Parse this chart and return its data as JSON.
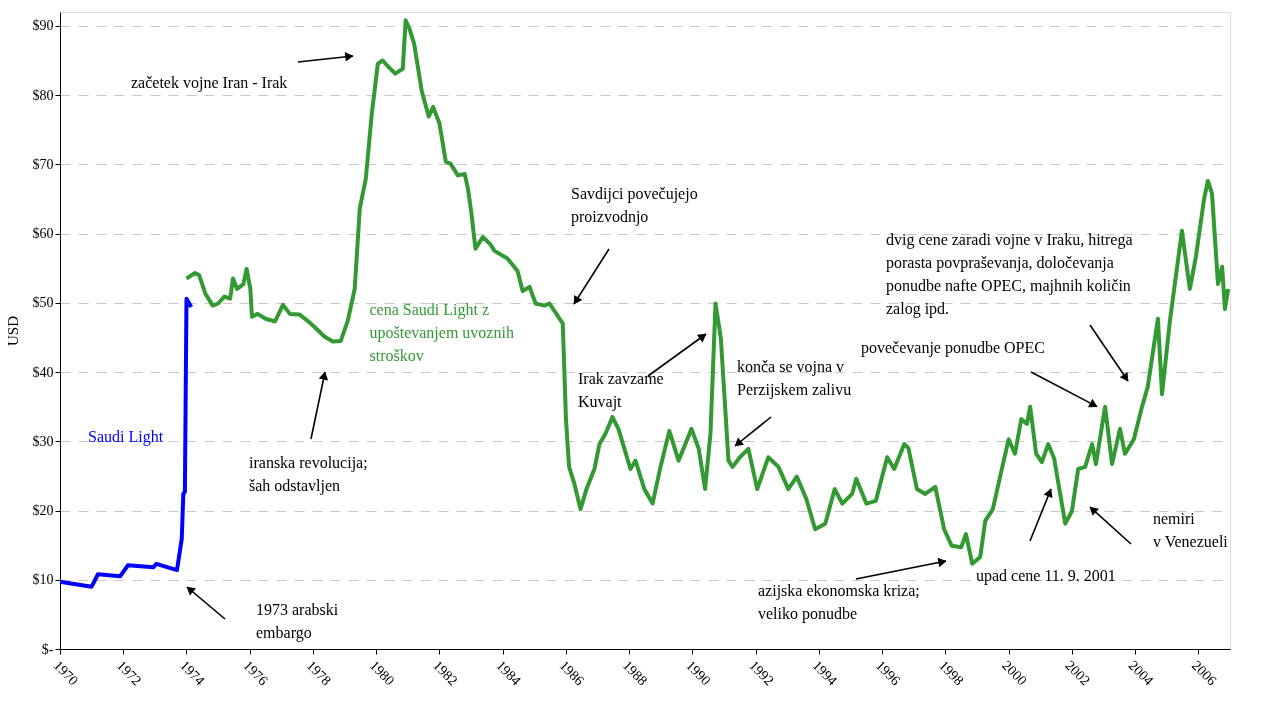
{
  "chart_data": {
    "type": "line",
    "ylabel": "USD",
    "xlim": [
      1970,
      2007
    ],
    "ylim": [
      0,
      92
    ],
    "xticks": [
      1970,
      1972,
      1974,
      1976,
      1978,
      1980,
      1982,
      1984,
      1986,
      1988,
      1990,
      1992,
      1994,
      1996,
      1998,
      2000,
      2002,
      2004,
      2006
    ],
    "yticks": [
      {
        "value": 0,
        "label": "$-"
      },
      {
        "value": 10,
        "label": "$10"
      },
      {
        "value": 20,
        "label": "$20"
      },
      {
        "value": 30,
        "label": "$30"
      },
      {
        "value": 40,
        "label": "$40"
      },
      {
        "value": 50,
        "label": "$50"
      },
      {
        "value": 60,
        "label": "$60"
      },
      {
        "value": 70,
        "label": "$70"
      },
      {
        "value": 80,
        "label": "$80"
      },
      {
        "value": 90,
        "label": "$90"
      }
    ],
    "grid": "y",
    "line_style": "solid",
    "marker": "none",
    "series": [
      {
        "name": "Saudi Light",
        "color": "#0000ff",
        "x": [
          1970.0,
          1971.0,
          1971.2,
          1971.9,
          1972.15,
          1972.95,
          1973.05,
          1973.7,
          1973.85,
          1973.9,
          1973.95,
          1974.0,
          1974.15
        ],
        "values": [
          9.7,
          9.0,
          10.8,
          10.5,
          12.1,
          11.8,
          12.3,
          11.4,
          15.9,
          22.4,
          22.7,
          50.6,
          49.4
        ]
      },
      {
        "name": "cena Saudi Light z upoštevanjem uvoznih stroškov",
        "color": "#339933",
        "x": [
          1974.0,
          1974.27,
          1974.4,
          1974.6,
          1974.83,
          1975.0,
          1975.2,
          1975.38,
          1975.47,
          1975.6,
          1975.8,
          1975.9,
          1976.02,
          1976.07,
          1976.25,
          1976.5,
          1976.8,
          1977.05,
          1977.27,
          1977.58,
          1977.83,
          1978.05,
          1978.37,
          1978.63,
          1978.88,
          1979.1,
          1979.32,
          1979.48,
          1979.67,
          1979.86,
          1980.05,
          1980.2,
          1980.36,
          1980.6,
          1980.84,
          1980.93,
          1981.05,
          1981.2,
          1981.44,
          1981.66,
          1981.8,
          1982.0,
          1982.2,
          1982.35,
          1982.58,
          1982.8,
          1982.9,
          1983.0,
          1983.14,
          1983.37,
          1983.6,
          1983.74,
          1984.15,
          1984.47,
          1984.63,
          1984.85,
          1985.04,
          1985.32,
          1985.48,
          1985.9,
          1986.0,
          1986.1,
          1986.27,
          1986.46,
          1986.65,
          1986.9,
          1987.06,
          1987.25,
          1987.47,
          1987.66,
          1987.85,
          1988.04,
          1988.2,
          1988.48,
          1988.74,
          1988.99,
          1989.27,
          1989.56,
          1989.75,
          1989.97,
          1990.2,
          1990.4,
          1990.57,
          1990.73,
          1990.9,
          1991.14,
          1991.27,
          1991.5,
          1991.77,
          1992.05,
          1992.4,
          1992.72,
          1993.03,
          1993.3,
          1993.6,
          1993.88,
          1994.2,
          1994.5,
          1994.74,
          1995.05,
          1995.18,
          1995.5,
          1995.8,
          1996.16,
          1996.38,
          1996.7,
          1996.83,
          1997.1,
          1997.36,
          1997.68,
          1997.96,
          1998.2,
          1998.5,
          1998.65,
          1998.85,
          1999.1,
          1999.26,
          1999.5,
          1999.8,
          2000.0,
          2000.2,
          2000.4,
          2000.58,
          2000.68,
          2000.87,
          2001.05,
          2001.25,
          2001.44,
          2001.79,
          2002.0,
          2002.2,
          2002.42,
          2002.64,
          2002.76,
          2003.05,
          2003.27,
          2003.52,
          2003.68,
          2003.96,
          2004.2,
          2004.4,
          2004.72,
          2004.85,
          2005.1,
          2005.48,
          2005.73,
          2005.92,
          2006.18,
          2006.3,
          2006.43,
          2006.62,
          2006.75,
          2006.84,
          2006.94
        ],
        "values": [
          53.5,
          54.3,
          54.0,
          51.3,
          49.6,
          49.9,
          50.9,
          50.6,
          53.5,
          52.0,
          52.7,
          54.9,
          52.0,
          48.0,
          48.4,
          47.7,
          47.3,
          49.7,
          48.4,
          48.3,
          47.4,
          46.5,
          45.1,
          44.4,
          44.5,
          47.4,
          52.0,
          63.6,
          67.9,
          77.3,
          84.5,
          85.0,
          84.2,
          83.1,
          83.8,
          90.8,
          89.6,
          87.4,
          80.6,
          76.9,
          78.3,
          75.9,
          70.4,
          70.1,
          68.4,
          68.6,
          66.5,
          63.3,
          57.8,
          59.5,
          58.5,
          57.5,
          56.4,
          54.6,
          51.7,
          52.3,
          49.9,
          49.6,
          49.9,
          47.0,
          33.2,
          26.3,
          23.8,
          20.2,
          23.1,
          26.0,
          29.6,
          31.1,
          33.5,
          31.8,
          28.9,
          26.0,
          27.2,
          23.1,
          21.0,
          26.3,
          31.5,
          27.2,
          29.3,
          31.8,
          28.9,
          23.1,
          31.1,
          49.9,
          44.8,
          27.2,
          26.3,
          27.7,
          28.9,
          23.1,
          27.7,
          26.3,
          23.1,
          24.9,
          21.7,
          17.3,
          18.1,
          23.1,
          21.0,
          22.4,
          24.6,
          21.0,
          21.4,
          27.7,
          26.0,
          29.6,
          29.0,
          23.1,
          22.4,
          23.4,
          17.3,
          14.9,
          14.7,
          16.6,
          12.3,
          13.3,
          18.5,
          20.2,
          26.3,
          30.3,
          28.2,
          33.2,
          32.5,
          35.0,
          28.2,
          27.0,
          29.6,
          27.5,
          18.1,
          19.9,
          26.0,
          26.3,
          29.6,
          26.7,
          35.0,
          26.7,
          31.8,
          28.2,
          30.3,
          34.7,
          37.9,
          47.7,
          36.8,
          47.4,
          60.4,
          52.0,
          56.6,
          65.0,
          67.6,
          65.8,
          52.7,
          55.2,
          49.1,
          52.0
        ]
      }
    ],
    "annotations": [
      "začetek vojne Iran - Irak",
      "iranska revolucija; šah odstavljen",
      "1973 arabski embargo",
      "Savdijci povečujejo proizvodnjo",
      "Irak zavzame Kuvajt",
      "konča se vojna v Perzijskem zalivu",
      "azijska ekonomska kriza; veliko ponudbe",
      "upad cene 11. 9. 2001",
      "nemiri v Venezueli",
      {
        "text": "povečevanje ponudbe OPEC",
        "x": 2003.05,
        "y": 35.0
      },
      "dvig cene zaradi vojne v Iraku, hitrega porasta povpraševanja, določevanja ponudbe nafte OPEC, majhnih količin zalog ipd."
    ]
  }
}
